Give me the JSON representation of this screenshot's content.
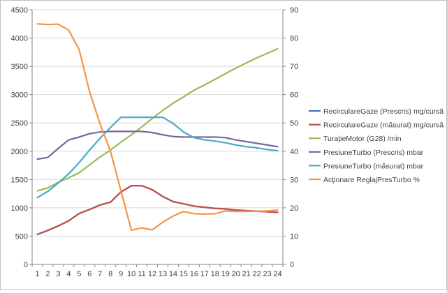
{
  "chart_data": {
    "type": "line",
    "title": "",
    "xlabel": "",
    "ylabel": "",
    "y2label": "",
    "x": [
      1,
      2,
      3,
      4,
      5,
      6,
      7,
      8,
      9,
      10,
      11,
      12,
      13,
      14,
      15,
      16,
      17,
      18,
      19,
      20,
      21,
      22,
      23,
      24
    ],
    "ylim": [
      0,
      4500
    ],
    "yticks": [
      0,
      500,
      1000,
      1500,
      2000,
      2500,
      3000,
      3500,
      4000,
      4500
    ],
    "y2lim": [
      0,
      90
    ],
    "y2ticks": [
      0,
      10,
      20,
      30,
      40,
      50,
      60,
      70,
      80,
      90
    ],
    "grid": "horizontal",
    "legend_position": "right",
    "series": [
      {
        "name": "RecirculareGaze (Prescris)  mg/cursă",
        "axis": "left",
        "color": "#4472c4",
        "values": [
          530,
          600,
          680,
          770,
          900,
          970,
          1050,
          1100,
          1280,
          1390,
          1390,
          1320,
          1200,
          1110,
          1070,
          1030,
          1010,
          990,
          980,
          960,
          950,
          940,
          930,
          920
        ]
      },
      {
        "name": "RecirculareGaze (măsurat)  mg/cursă",
        "axis": "left",
        "color": "#c0504d",
        "values": [
          530,
          600,
          680,
          770,
          900,
          970,
          1050,
          1100,
          1280,
          1390,
          1390,
          1320,
          1200,
          1110,
          1070,
          1030,
          1010,
          990,
          980,
          960,
          950,
          940,
          930,
          920
        ]
      },
      {
        "name": "TuraţieMotor (G28)  /min",
        "axis": "left",
        "color": "#9bbb59",
        "values": [
          1300,
          1350,
          1450,
          1530,
          1620,
          1760,
          1900,
          2020,
          2160,
          2290,
          2430,
          2580,
          2720,
          2850,
          2960,
          3080,
          3170,
          3270,
          3370,
          3470,
          3560,
          3650,
          3730,
          3810
        ]
      },
      {
        "name": "PresiuneTurbo (Prescris)  mbar",
        "axis": "left",
        "color": "#8064a2",
        "values": [
          1860,
          1890,
          2050,
          2200,
          2250,
          2310,
          2340,
          2350,
          2350,
          2350,
          2350,
          2330,
          2290,
          2260,
          2250,
          2250,
          2250,
          2250,
          2240,
          2200,
          2170,
          2140,
          2110,
          2080
        ]
      },
      {
        "name": "PresiuneTurbo (măsurat)  mbar",
        "axis": "left",
        "color": "#4bacc6",
        "values": [
          1180,
          1290,
          1440,
          1600,
          1800,
          2020,
          2230,
          2420,
          2600,
          2600,
          2600,
          2600,
          2600,
          2490,
          2340,
          2240,
          2200,
          2180,
          2150,
          2110,
          2080,
          2060,
          2030,
          2010
        ]
      },
      {
        "name": "Acţionare ReglajPresTurbo  %",
        "axis": "right",
        "color": "#f79646",
        "values": [
          85,
          84.8,
          84.9,
          82.8,
          75.9,
          61,
          49.7,
          40,
          26,
          12.1,
          12.9,
          12.2,
          14.9,
          17.1,
          18.7,
          17.9,
          17.8,
          17.9,
          18.9,
          18.7,
          18.7,
          18.8,
          18.9,
          19.2
        ]
      }
    ]
  }
}
